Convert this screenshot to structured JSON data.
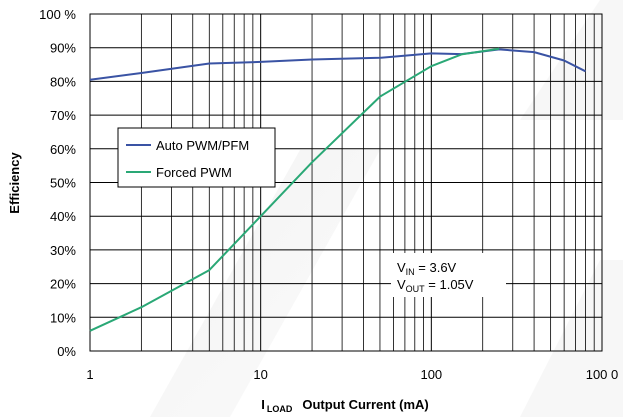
{
  "chart_data": {
    "type": "line",
    "xscale": "log",
    "xlim": [
      1,
      1000
    ],
    "ylim": [
      0,
      100
    ],
    "ylabel": "Efficiency",
    "xlabel": {
      "symbol": "I",
      "subscript": "LOAD",
      "text": "Output Current (mA)"
    },
    "x_ticks": [
      "1",
      "10",
      "100",
      "100 0"
    ],
    "y_ticks": [
      "0%",
      "10%",
      "20%",
      "30%",
      "40%",
      "50%",
      "60%",
      "70%",
      "80%",
      "90%",
      "100 %"
    ],
    "grid": true,
    "legend_position": "middle-left",
    "series": [
      {
        "name": "Auto PWM/PFM",
        "color": "#3a53a4",
        "x": [
          1,
          2,
          5,
          10,
          20,
          50,
          100,
          150,
          250,
          400,
          600,
          800
        ],
        "y": [
          80.5,
          82.5,
          85.3,
          85.8,
          86.5,
          87,
          88.3,
          88.1,
          89.5,
          88.7,
          86.2,
          83
        ]
      },
      {
        "name": "Forced PWM",
        "color": "#2aa876",
        "x": [
          1,
          2,
          5,
          10,
          20,
          50,
          100,
          150,
          250
        ],
        "y": [
          6,
          13,
          24,
          40,
          56,
          75.5,
          84.5,
          88,
          89.7
        ]
      }
    ],
    "annotation": {
      "line1": {
        "main": "V",
        "sub": "IN",
        "rest": " = 3.6V"
      },
      "line2": {
        "main": "V",
        "sub": "OUT",
        "rest": " = 1.05V"
      }
    }
  }
}
